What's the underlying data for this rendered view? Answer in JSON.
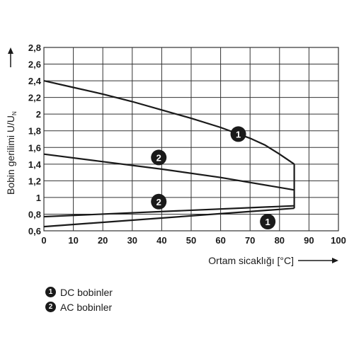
{
  "chart_data": {
    "type": "line",
    "xlabel": "Ortam sicaklığı [°C]",
    "ylabel": "Bobin gerilimi U/U",
    "ylabel_sub": "N",
    "xlim": [
      0,
      100
    ],
    "ylim": [
      0.6,
      2.8
    ],
    "x_ticks": [
      "0",
      "10",
      "20",
      "30",
      "40",
      "50",
      "60",
      "70",
      "80",
      "90",
      "100"
    ],
    "y_ticks": [
      "0,6",
      "0,8",
      "1",
      "1,2",
      "1,4",
      "1,6",
      "1,8",
      "2",
      "2,2",
      "2,4",
      "2,6",
      "2,8"
    ],
    "grid": true,
    "series": [
      {
        "name": "1",
        "kind": "DC",
        "region": true,
        "upper": {
          "x": [
            0,
            10,
            20,
            30,
            40,
            50,
            60,
            70,
            75,
            80,
            85
          ],
          "y": [
            2.4,
            2.32,
            2.24,
            2.15,
            2.05,
            1.95,
            1.84,
            1.71,
            1.63,
            1.52,
            1.4
          ]
        },
        "lower": {
          "x": [
            0,
            85
          ],
          "y": [
            0.65,
            0.87
          ]
        },
        "label_at": {
          "x": 66,
          "y": 1.76
        },
        "label2_at": {
          "x": 76,
          "y": 0.71
        }
      },
      {
        "name": "2",
        "kind": "AC",
        "region": true,
        "upper": {
          "x": [
            0,
            20,
            40,
            60,
            85
          ],
          "y": [
            1.52,
            1.43,
            1.34,
            1.24,
            1.09
          ]
        },
        "lower": {
          "x": [
            0,
            85
          ],
          "y": [
            0.77,
            0.9
          ]
        },
        "label_at": {
          "x": 39,
          "y": 1.48
        },
        "label2_at": {
          "x": 39,
          "y": 0.95
        }
      }
    ]
  },
  "legend": [
    {
      "badge": "1",
      "label": "DC bobinler"
    },
    {
      "badge": "2",
      "label": "AC bobinler"
    }
  ],
  "colors": {
    "line": "#1a1a1a",
    "grid": "#333333",
    "badge_bg": "#1a1a1a",
    "badge_text": "#ffffff"
  }
}
